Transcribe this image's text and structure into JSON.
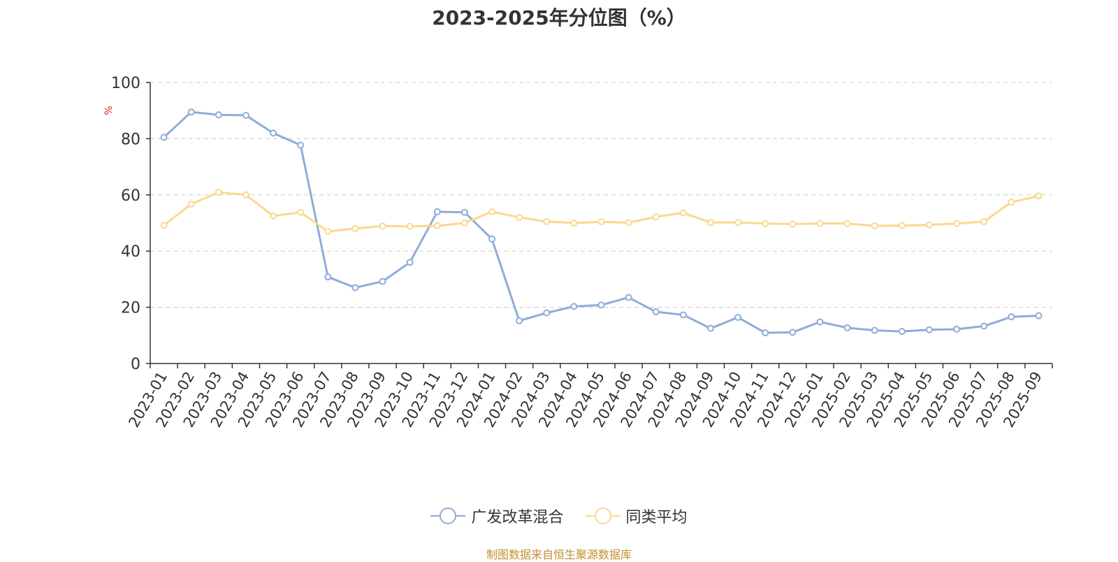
{
  "chart_data": {
    "type": "line",
    "title": "2023-2025年分位图（%）",
    "ylabel": "%",
    "xlabel": "",
    "ylim": [
      0,
      100
    ],
    "yticks": [
      0,
      20,
      40,
      60,
      80,
      100
    ],
    "grid": "horizontal dashed",
    "legend_position": "bottom-center",
    "categories": [
      "2023-01",
      "2023-02",
      "2023-03",
      "2023-04",
      "2023-05",
      "2023-06",
      "2023-07",
      "2023-08",
      "2023-09",
      "2023-10",
      "2023-11",
      "2023-12",
      "2024-01",
      "2024-02",
      "2024-03",
      "2024-04",
      "2024-05",
      "2024-06",
      "2024-07",
      "2024-08",
      "2024-09",
      "2024-10",
      "2024-11",
      "2024-12",
      "2025-01",
      "2025-02",
      "2025-03",
      "2025-04",
      "2025-05",
      "2025-06",
      "2025-07",
      "2025-08",
      "2025-09"
    ],
    "series": [
      {
        "name": "广发改革混合",
        "color": "#8eadd8",
        "values": [
          80.5,
          89.5,
          88.5,
          88.3,
          82.0,
          77.7,
          30.8,
          27.0,
          29.2,
          36.0,
          54.0,
          53.8,
          44.3,
          15.2,
          18.0,
          20.3,
          20.8,
          23.5,
          18.4,
          17.3,
          12.5,
          16.4,
          10.9,
          11.1,
          14.8,
          12.7,
          11.8,
          11.4,
          12.0,
          12.2,
          13.3,
          16.6,
          17.0
        ]
      },
      {
        "name": "同类平均",
        "color": "#fad88f",
        "values": [
          49.2,
          56.7,
          60.9,
          60.0,
          52.5,
          53.8,
          47.0,
          48.0,
          48.9,
          48.8,
          49.0,
          50.0,
          54.0,
          52.0,
          50.5,
          50.0,
          50.4,
          50.1,
          52.2,
          53.6,
          50.2,
          50.2,
          49.8,
          49.6,
          49.8,
          49.8,
          49.0,
          49.1,
          49.3,
          49.8,
          50.5,
          57.4,
          59.6
        ]
      }
    ]
  },
  "source": "制图数据来自恒生聚源数据库"
}
